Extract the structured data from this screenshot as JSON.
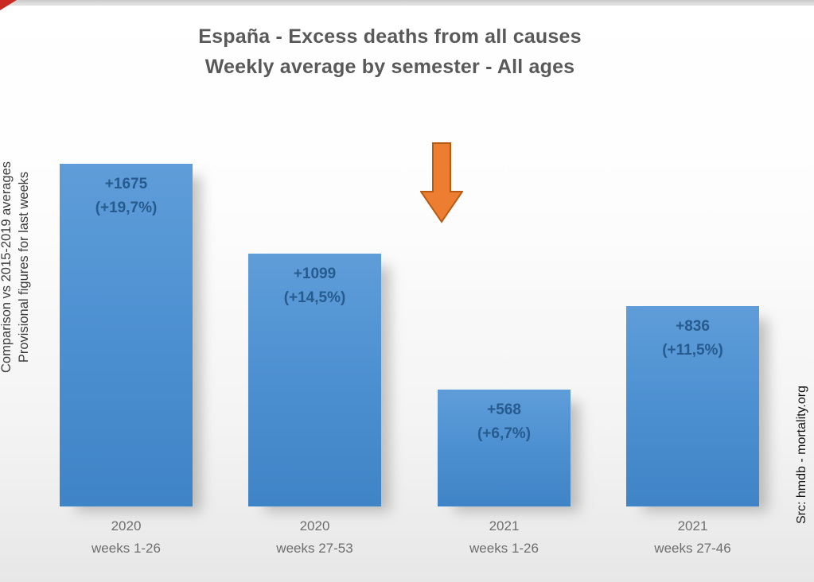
{
  "title": {
    "line1": "España - Excess deaths from all causes",
    "line2": "Weekly average by semester - All ages"
  },
  "annotations": {
    "left_line1": "Comparison vs 2015-2019 averages",
    "left_line2": "Provisional figures for last weeks",
    "right_source": "Src: hmdb - mortality.org",
    "arrow_note": "down-arrow pointing at 2021 weeks 1-26 bar"
  },
  "colors": {
    "bar_fill": "#4a8fce",
    "bar_label_text": "#275b8e",
    "title_text": "#595959",
    "axis_label_text": "#6e6e6e",
    "arrow_fill": "#ED7D31",
    "arrow_stroke": "#b95a13",
    "top_strip": "#dcdcdc",
    "corner_marker": "#c92b23"
  },
  "chart_data": {
    "type": "bar",
    "title": "España - Excess deaths from all causes",
    "subtitle": "Weekly average by semester - All ages",
    "categories": [
      "2020 weeks 1-26",
      "2020 weeks 27-53",
      "2021 weeks 1-26",
      "2021 weeks 27-46"
    ],
    "values": [
      1675,
      1099,
      568,
      836
    ],
    "xlabel": "",
    "ylabel": "",
    "grid": false,
    "legend": false,
    "bars": [
      {
        "year": "2020",
        "weeks": "weeks 1-26",
        "value": 1675,
        "value_label": "+1675",
        "pct_label": "(+19,7%)"
      },
      {
        "year": "2020",
        "weeks": "weeks 27-53",
        "value": 1099,
        "value_label": "+1099",
        "pct_label": "(+14,5%)"
      },
      {
        "year": "2021",
        "weeks": "weeks 1-26",
        "value": 568,
        "value_label": "+568",
        "pct_label": "(+6,7%)"
      },
      {
        "year": "2021",
        "weeks": "weeks 27-46",
        "value": 836,
        "value_label": "+836",
        "pct_label": "(+11,5%)"
      }
    ],
    "annotations": {
      "arrow": {
        "type": "down-arrow",
        "color": "#ED7D31",
        "target_category": "2021 weeks 1-26"
      }
    }
  }
}
